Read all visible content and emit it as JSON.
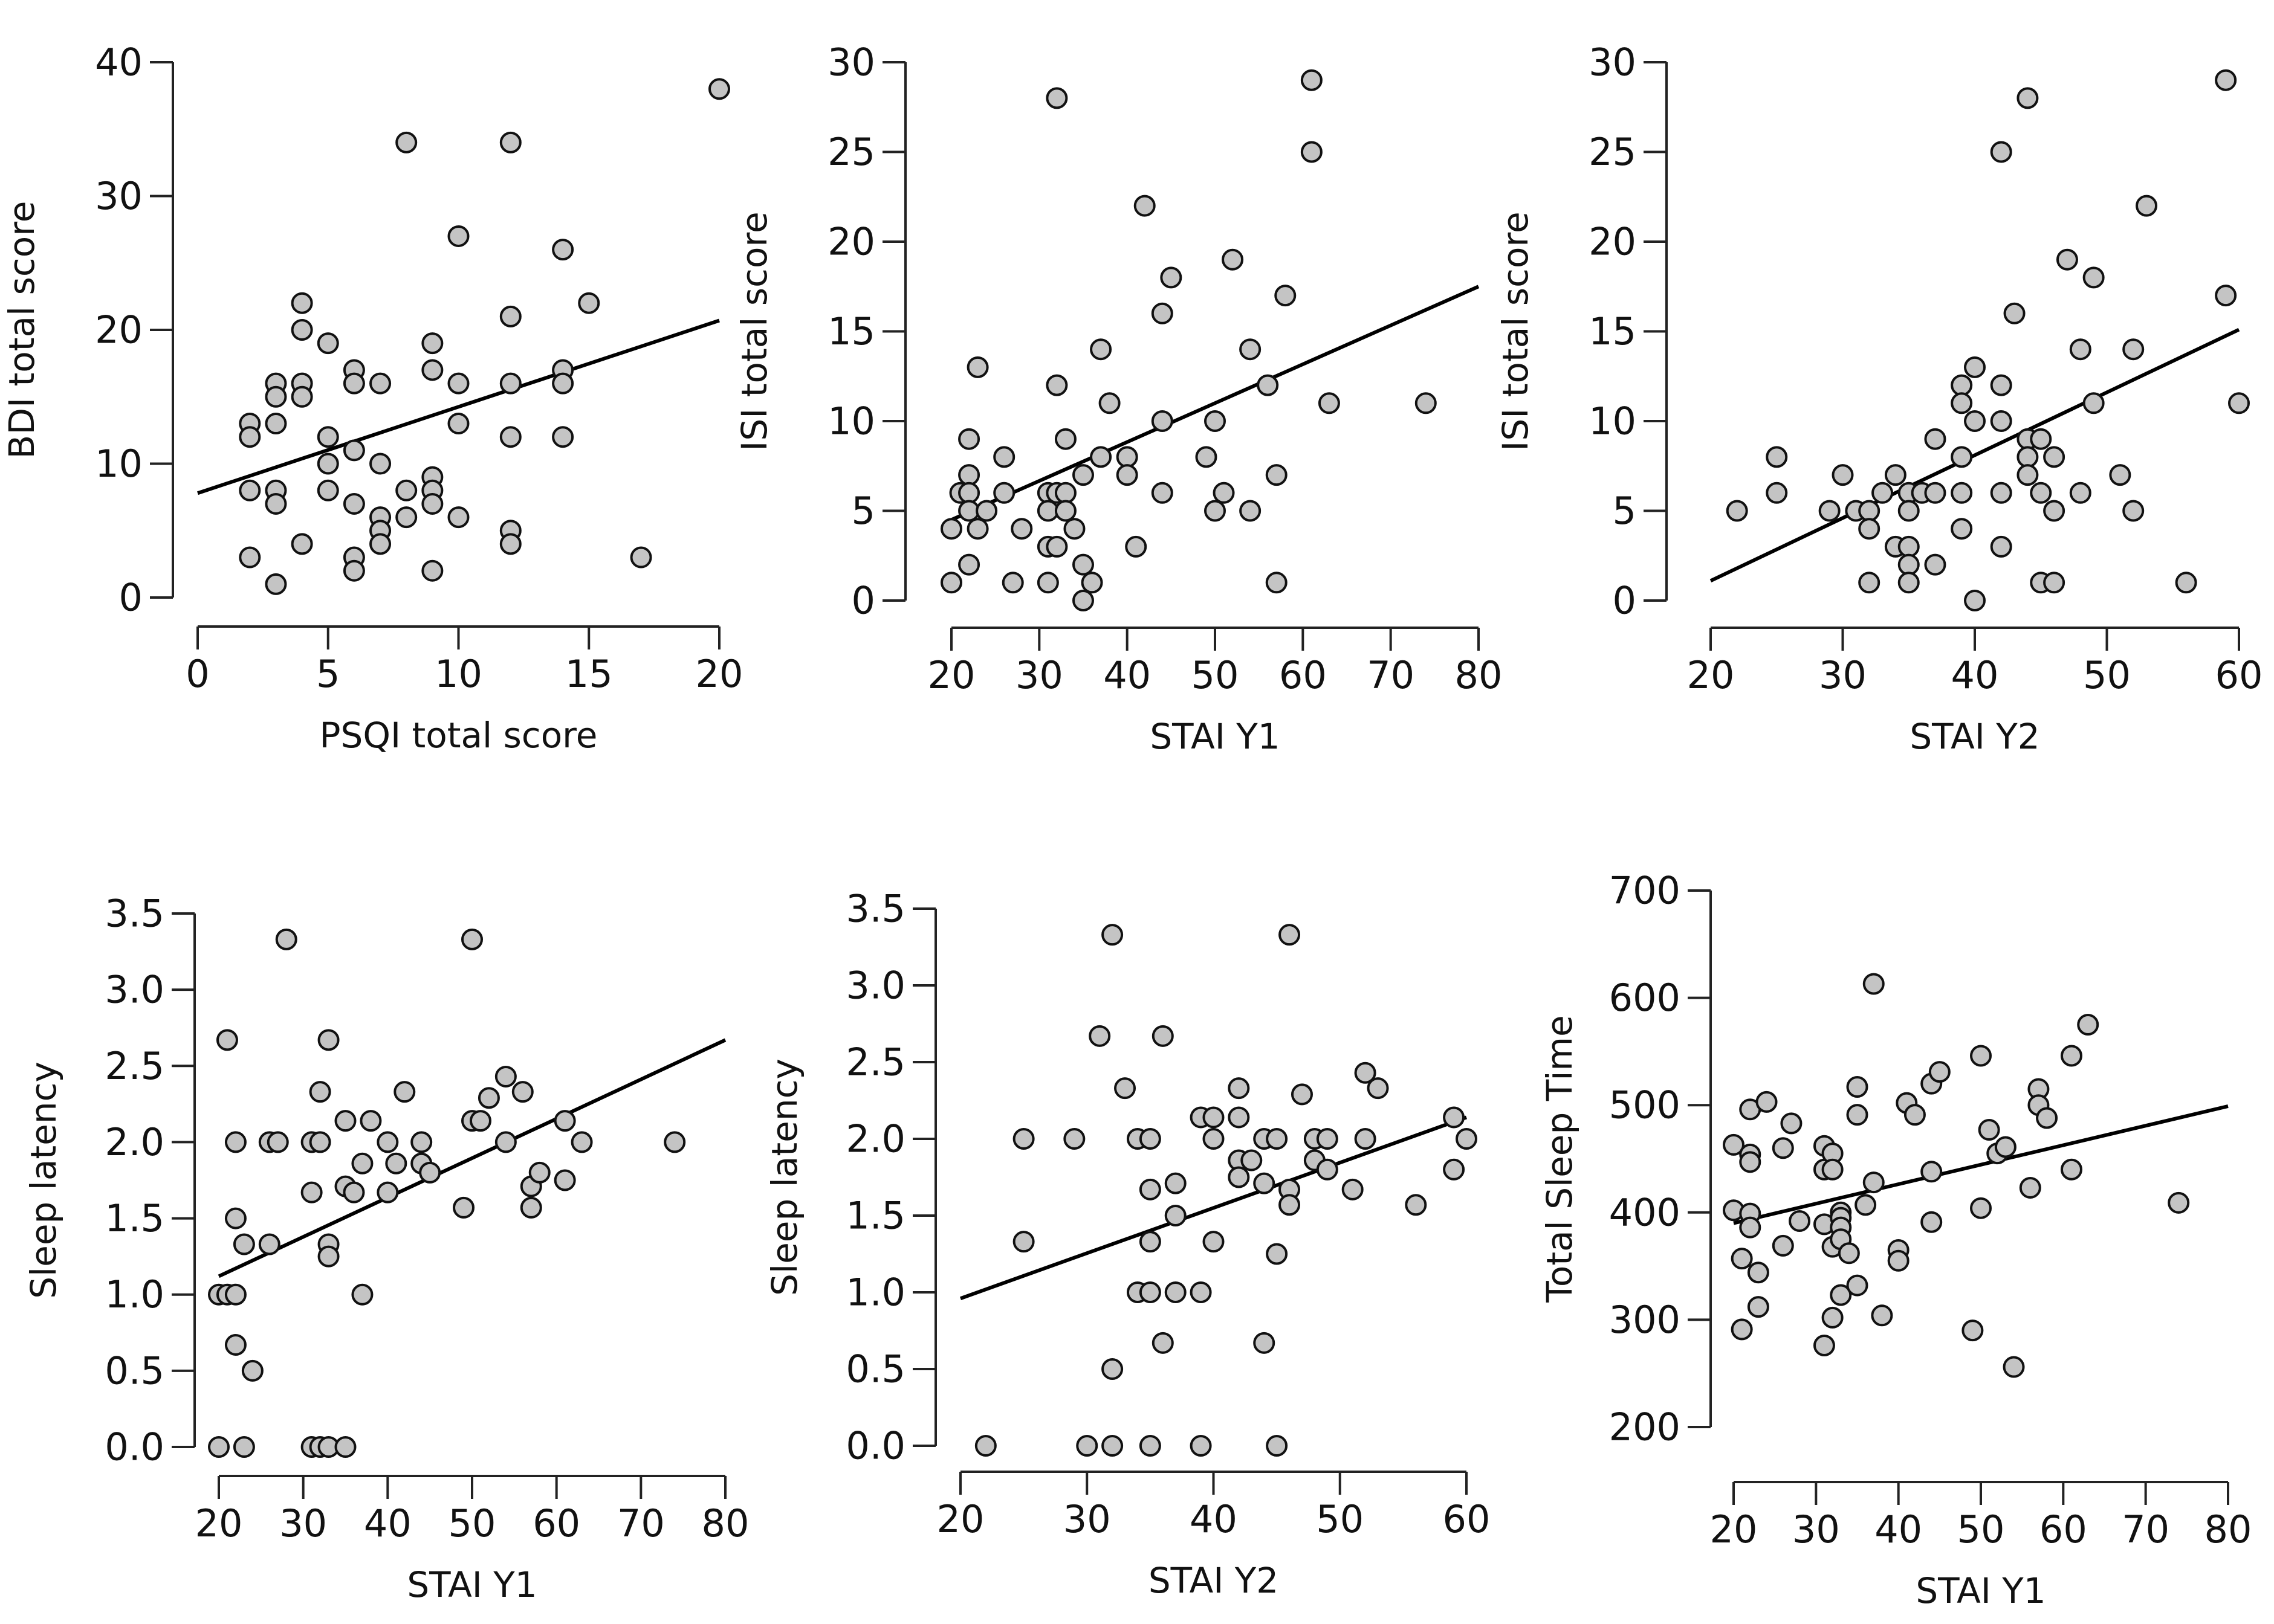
{
  "chart_data": [
    {
      "type": "scatter",
      "xlabel": "PSQI total score",
      "ylabel": "BDI total score",
      "xticks": [
        0,
        5,
        10,
        15,
        20
      ],
      "yticks": [
        0,
        10,
        20,
        30,
        40
      ],
      "xlim": [
        0,
        20
      ],
      "ylim": [
        0,
        40
      ],
      "trend": {
        "x": [
          0,
          20
        ],
        "y": [
          7.8,
          20.7
        ]
      },
      "points": [
        [
          2,
          13
        ],
        [
          2,
          12
        ],
        [
          2,
          8
        ],
        [
          2,
          3
        ],
        [
          3,
          16
        ],
        [
          3,
          15
        ],
        [
          3,
          13
        ],
        [
          3,
          8
        ],
        [
          3,
          7
        ],
        [
          3,
          1
        ],
        [
          4,
          22
        ],
        [
          4,
          20
        ],
        [
          4,
          16
        ],
        [
          4,
          15
        ],
        [
          4,
          4
        ],
        [
          5,
          19
        ],
        [
          5,
          12
        ],
        [
          5,
          10
        ],
        [
          5,
          8
        ],
        [
          6,
          17
        ],
        [
          6,
          16
        ],
        [
          6,
          11
        ],
        [
          6,
          7
        ],
        [
          6,
          3
        ],
        [
          6,
          2
        ],
        [
          7,
          16
        ],
        [
          7,
          10
        ],
        [
          7,
          6
        ],
        [
          7,
          5
        ],
        [
          7,
          4
        ],
        [
          8,
          34
        ],
        [
          8,
          8
        ],
        [
          8,
          6
        ],
        [
          9,
          19
        ],
        [
          9,
          17
        ],
        [
          9,
          9
        ],
        [
          9,
          8
        ],
        [
          9,
          7
        ],
        [
          9,
          2
        ],
        [
          10,
          27
        ],
        [
          10,
          16
        ],
        [
          10,
          13
        ],
        [
          10,
          6
        ],
        [
          12,
          34
        ],
        [
          12,
          21
        ],
        [
          12,
          16
        ],
        [
          12,
          12
        ],
        [
          12,
          5
        ],
        [
          12,
          4
        ],
        [
          14,
          26
        ],
        [
          14,
          17
        ],
        [
          14,
          16
        ],
        [
          14,
          12
        ],
        [
          15,
          22
        ],
        [
          17,
          3
        ],
        [
          20,
          38
        ]
      ]
    },
    {
      "type": "scatter",
      "xlabel": "STAI Y1",
      "ylabel": "ISI total score",
      "xticks": [
        20,
        30,
        40,
        50,
        60,
        70,
        80
      ],
      "yticks": [
        0,
        5,
        10,
        15,
        20,
        25,
        30
      ],
      "xlim": [
        20,
        80
      ],
      "ylim": [
        0,
        30
      ],
      "trend": {
        "x": [
          20,
          80
        ],
        "y": [
          4.5,
          17.5
        ]
      },
      "points": [
        [
          20,
          4
        ],
        [
          20,
          1
        ],
        [
          21,
          6
        ],
        [
          22,
          9
        ],
        [
          22,
          7
        ],
        [
          22,
          6
        ],
        [
          22,
          5
        ],
        [
          22,
          2
        ],
        [
          23,
          13
        ],
        [
          23,
          4
        ],
        [
          24,
          5
        ],
        [
          26,
          8
        ],
        [
          26,
          6
        ],
        [
          27,
          1
        ],
        [
          28,
          4
        ],
        [
          31,
          6
        ],
        [
          31,
          5
        ],
        [
          31,
          3
        ],
        [
          31,
          1
        ],
        [
          32,
          28
        ],
        [
          32,
          12
        ],
        [
          32,
          6
        ],
        [
          32,
          3
        ],
        [
          33,
          9
        ],
        [
          33,
          6
        ],
        [
          33,
          5
        ],
        [
          34,
          4
        ],
        [
          35,
          7
        ],
        [
          35,
          2
        ],
        [
          35,
          0
        ],
        [
          36,
          1
        ],
        [
          37,
          14
        ],
        [
          37,
          8
        ],
        [
          38,
          11
        ],
        [
          40,
          8
        ],
        [
          40,
          7
        ],
        [
          41,
          3
        ],
        [
          42,
          22
        ],
        [
          44,
          16
        ],
        [
          44,
          10
        ],
        [
          44,
          6
        ],
        [
          45,
          18
        ],
        [
          49,
          8
        ],
        [
          50,
          10
        ],
        [
          50,
          5
        ],
        [
          51,
          6
        ],
        [
          52,
          19
        ],
        [
          54,
          14
        ],
        [
          54,
          5
        ],
        [
          56,
          12
        ],
        [
          57,
          7
        ],
        [
          57,
          1
        ],
        [
          58,
          17
        ],
        [
          61,
          29
        ],
        [
          61,
          25
        ],
        [
          63,
          11
        ],
        [
          74,
          11
        ]
      ]
    },
    {
      "type": "scatter",
      "xlabel": "STAI Y2",
      "ylabel": "ISI total score",
      "xticks": [
        20,
        30,
        40,
        50,
        60
      ],
      "yticks": [
        0,
        5,
        10,
        15,
        20,
        25,
        30
      ],
      "xlim": [
        20,
        60
      ],
      "ylim": [
        0,
        30
      ],
      "trend": {
        "x": [
          20,
          60
        ],
        "y": [
          1.1,
          15.1
        ]
      },
      "points": [
        [
          22,
          5
        ],
        [
          25,
          8
        ],
        [
          25,
          6
        ],
        [
          29,
          5
        ],
        [
          30,
          7
        ],
        [
          31,
          5
        ],
        [
          32,
          5
        ],
        [
          32,
          4
        ],
        [
          32,
          1
        ],
        [
          33,
          6
        ],
        [
          34,
          7
        ],
        [
          34,
          3
        ],
        [
          35,
          6
        ],
        [
          35,
          5
        ],
        [
          35,
          3
        ],
        [
          35,
          2
        ],
        [
          35,
          1
        ],
        [
          36,
          6
        ],
        [
          37,
          9
        ],
        [
          37,
          6
        ],
        [
          37,
          2
        ],
        [
          39,
          12
        ],
        [
          39,
          11
        ],
        [
          39,
          8
        ],
        [
          39,
          6
        ],
        [
          39,
          4
        ],
        [
          40,
          13
        ],
        [
          40,
          10
        ],
        [
          40,
          0
        ],
        [
          42,
          25
        ],
        [
          42,
          12
        ],
        [
          42,
          10
        ],
        [
          42,
          6
        ],
        [
          42,
          3
        ],
        [
          43,
          16
        ],
        [
          44,
          28
        ],
        [
          44,
          9
        ],
        [
          44,
          8
        ],
        [
          44,
          7
        ],
        [
          45,
          9
        ],
        [
          45,
          6
        ],
        [
          45,
          1
        ],
        [
          46,
          8
        ],
        [
          46,
          5
        ],
        [
          46,
          1
        ],
        [
          47,
          19
        ],
        [
          48,
          14
        ],
        [
          48,
          6
        ],
        [
          49,
          18
        ],
        [
          49,
          11
        ],
        [
          51,
          7
        ],
        [
          52,
          14
        ],
        [
          52,
          5
        ],
        [
          53,
          22
        ],
        [
          56,
          1
        ],
        [
          59,
          29
        ],
        [
          59,
          17
        ],
        [
          60,
          11
        ]
      ]
    },
    {
      "type": "scatter",
      "xlabel": "STAI Y1",
      "ylabel": "Sleep latency",
      "xticks": [
        20,
        30,
        40,
        50,
        60,
        70,
        80
      ],
      "yticks": [
        "0.0",
        "0.5",
        "1.0",
        "1.5",
        "2.0",
        "2.5",
        "3.0",
        "3.5"
      ],
      "xlim": [
        20,
        80
      ],
      "ylim": [
        0,
        3.5
      ],
      "trend": {
        "x": [
          20,
          80
        ],
        "y": [
          1.12,
          2.67
        ]
      },
      "points": [
        [
          20,
          1.0
        ],
        [
          20,
          0.0
        ],
        [
          21,
          2.67
        ],
        [
          21,
          1.0
        ],
        [
          22,
          2.0
        ],
        [
          22,
          1.5
        ],
        [
          22,
          1.0
        ],
        [
          22,
          0.67
        ],
        [
          23,
          1.33
        ],
        [
          23,
          0.0
        ],
        [
          24,
          0.5
        ],
        [
          26,
          2.0
        ],
        [
          26,
          1.33
        ],
        [
          27,
          2.0
        ],
        [
          28,
          3.33
        ],
        [
          31,
          2.0
        ],
        [
          31,
          1.67
        ],
        [
          31,
          0.0
        ],
        [
          32,
          2.33
        ],
        [
          32,
          2.0
        ],
        [
          32,
          0.0
        ],
        [
          33,
          2.67
        ],
        [
          33,
          1.33
        ],
        [
          33,
          1.25
        ],
        [
          33,
          0.0
        ],
        [
          35,
          2.14
        ],
        [
          35,
          1.71
        ],
        [
          35,
          0.0
        ],
        [
          36,
          1.67
        ],
        [
          37,
          1.86
        ],
        [
          37,
          1.0
        ],
        [
          38,
          2.14
        ],
        [
          40,
          2.0
        ],
        [
          40,
          1.67
        ],
        [
          41,
          1.86
        ],
        [
          42,
          2.33
        ],
        [
          44,
          2.0
        ],
        [
          44,
          1.86
        ],
        [
          45,
          1.8
        ],
        [
          49,
          1.57
        ],
        [
          50,
          3.33
        ],
        [
          50,
          2.14
        ],
        [
          51,
          2.14
        ],
        [
          52,
          2.29
        ],
        [
          54,
          2.43
        ],
        [
          54,
          2.0
        ],
        [
          56,
          2.33
        ],
        [
          57,
          1.71
        ],
        [
          57,
          1.57
        ],
        [
          58,
          1.8
        ],
        [
          61,
          2.14
        ],
        [
          61,
          1.75
        ],
        [
          63,
          2.0
        ],
        [
          74,
          2.0
        ]
      ]
    },
    {
      "type": "scatter",
      "xlabel": "STAI Y2",
      "ylabel": "Sleep latency",
      "xticks": [
        20,
        30,
        40,
        50,
        60
      ],
      "yticks": [
        "0.0",
        "0.5",
        "1.0",
        "1.5",
        "2.0",
        "2.5",
        "3.0",
        "3.5"
      ],
      "xlim": [
        20,
        60
      ],
      "ylim": [
        0,
        3.5
      ],
      "trend": {
        "x": [
          20,
          60
        ],
        "y": [
          0.96,
          2.14
        ]
      },
      "points": [
        [
          22,
          0.0
        ],
        [
          25,
          2.0
        ],
        [
          25,
          1.33
        ],
        [
          29,
          2.0
        ],
        [
          30,
          0.0
        ],
        [
          31,
          2.67
        ],
        [
          32,
          3.33
        ],
        [
          32,
          0.5
        ],
        [
          32,
          0.0
        ],
        [
          33,
          2.33
        ],
        [
          34,
          2.0
        ],
        [
          34,
          1.0
        ],
        [
          35,
          2.0
        ],
        [
          35,
          1.67
        ],
        [
          35,
          1.33
        ],
        [
          35,
          1.0
        ],
        [
          35,
          0.0
        ],
        [
          36,
          2.67
        ],
        [
          36,
          0.67
        ],
        [
          37,
          1.71
        ],
        [
          37,
          1.5
        ],
        [
          37,
          1.0
        ],
        [
          39,
          2.14
        ],
        [
          39,
          1.0
        ],
        [
          39,
          0.0
        ],
        [
          40,
          2.14
        ],
        [
          40,
          2.0
        ],
        [
          40,
          1.33
        ],
        [
          42,
          2.33
        ],
        [
          42,
          2.14
        ],
        [
          42,
          1.86
        ],
        [
          42,
          1.75
        ],
        [
          43,
          1.86
        ],
        [
          44,
          2.0
        ],
        [
          44,
          1.71
        ],
        [
          44,
          0.67
        ],
        [
          45,
          2.0
        ],
        [
          45,
          1.25
        ],
        [
          45,
          0.0
        ],
        [
          46,
          3.33
        ],
        [
          46,
          1.67
        ],
        [
          46,
          1.57
        ],
        [
          47,
          2.29
        ],
        [
          48,
          2.0
        ],
        [
          48,
          1.86
        ],
        [
          49,
          2.0
        ],
        [
          49,
          1.8
        ],
        [
          51,
          1.67
        ],
        [
          52,
          2.43
        ],
        [
          52,
          2.0
        ],
        [
          53,
          2.33
        ],
        [
          56,
          1.57
        ],
        [
          59,
          2.14
        ],
        [
          59,
          1.8
        ],
        [
          60,
          2.0
        ]
      ]
    },
    {
      "type": "scatter",
      "xlabel": "STAI Y1",
      "ylabel": "Total Sleep Time",
      "xticks": [
        20,
        30,
        40,
        50,
        60,
        70,
        80
      ],
      "yticks": [
        200,
        300,
        400,
        500,
        600,
        700
      ],
      "xlim": [
        20,
        80
      ],
      "ylim": [
        200,
        700
      ],
      "trend": {
        "x": [
          20,
          80
        ],
        "y": [
          390,
          499
        ]
      },
      "points": [
        [
          20,
          463
        ],
        [
          20,
          402
        ],
        [
          21,
          357
        ],
        [
          21,
          291
        ],
        [
          22,
          496
        ],
        [
          22,
          454
        ],
        [
          22,
          447
        ],
        [
          22,
          399
        ],
        [
          22,
          386
        ],
        [
          23,
          344
        ],
        [
          23,
          312
        ],
        [
          24,
          503
        ],
        [
          26,
          369
        ],
        [
          26,
          460
        ],
        [
          27,
          483
        ],
        [
          28,
          392
        ],
        [
          31,
          462
        ],
        [
          31,
          440
        ],
        [
          31,
          389
        ],
        [
          31,
          276
        ],
        [
          32,
          455
        ],
        [
          32,
          440
        ],
        [
          32,
          302
        ],
        [
          32,
          368
        ],
        [
          33,
          400
        ],
        [
          33,
          395
        ],
        [
          33,
          386
        ],
        [
          33,
          375
        ],
        [
          33,
          323
        ],
        [
          34,
          362
        ],
        [
          35,
          517
        ],
        [
          35,
          491
        ],
        [
          35,
          332
        ],
        [
          36,
          407
        ],
        [
          37,
          613
        ],
        [
          37,
          428
        ],
        [
          38,
          304
        ],
        [
          40,
          365
        ],
        [
          40,
          355
        ],
        [
          41,
          502
        ],
        [
          42,
          491
        ],
        [
          44,
          520
        ],
        [
          44,
          438
        ],
        [
          44,
          391
        ],
        [
          45,
          531
        ],
        [
          49,
          290
        ],
        [
          50,
          546
        ],
        [
          50,
          404
        ],
        [
          51,
          477
        ],
        [
          52,
          455
        ],
        [
          53,
          461
        ],
        [
          54,
          256
        ],
        [
          56,
          423
        ],
        [
          57,
          515
        ],
        [
          57,
          500
        ],
        [
          58,
          488
        ],
        [
          61,
          546
        ],
        [
          61,
          440
        ],
        [
          63,
          575
        ],
        [
          74,
          409
        ]
      ]
    }
  ]
}
